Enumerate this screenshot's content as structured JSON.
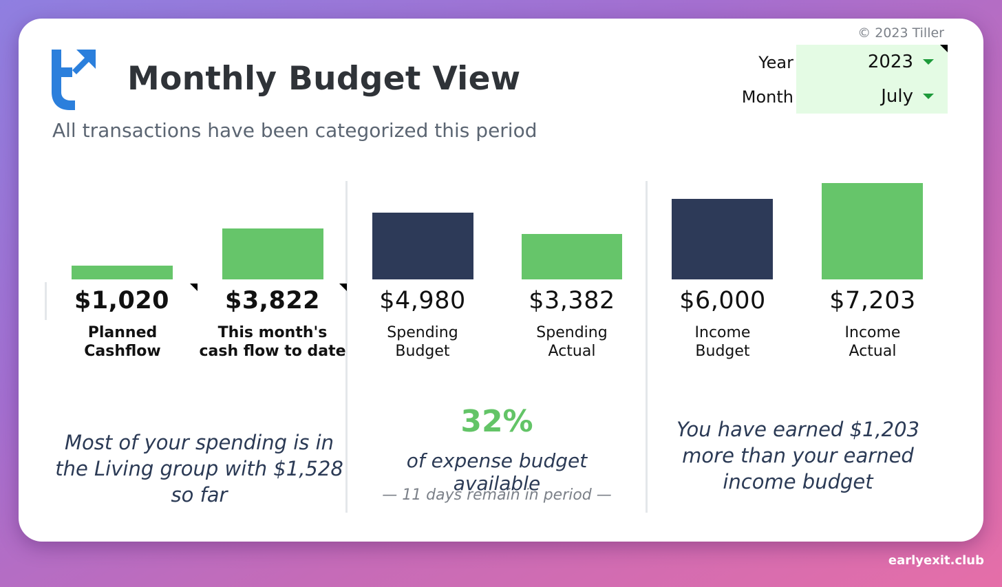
{
  "copyright": "© 2023 Tiller",
  "title": "Monthly Budget View",
  "subtitle": "All transactions have been categorized this period",
  "selectors": {
    "year": {
      "label": "Year",
      "value": "2023"
    },
    "month": {
      "label": "Month",
      "value": "July"
    }
  },
  "colors": {
    "green": "#66c56a",
    "navy": "#2d3a58",
    "selector_bg": "#e4fbe4",
    "accent_text": "#63c467"
  },
  "icons": {
    "logo": "tiller-logo",
    "dropdown": "triangle-down-icon",
    "note": "note-corner-icon"
  },
  "metrics": [
    {
      "value": "$1,020",
      "label": "Planned Cashflow",
      "color": "green",
      "amount": 1020
    },
    {
      "value": "$3,822",
      "label": "This month's cash flow to date",
      "color": "green",
      "amount": 3822
    },
    {
      "value": "$4,980",
      "label": "Spending Budget",
      "color": "navy",
      "amount": 4980
    },
    {
      "value": "$3,382",
      "label": "Spending Actual",
      "color": "green",
      "amount": 3382
    },
    {
      "value": "$6,000",
      "label": "Income Budget",
      "color": "navy",
      "amount": 6000
    },
    {
      "value": "$7,203",
      "label": "Income Actual",
      "color": "green",
      "amount": 7203
    }
  ],
  "insights": {
    "spending_group": "Most of your spending is in the Living group with $1,528 so far",
    "budget_pct": "32%",
    "budget_pct_text": "of expense budget available",
    "days_remaining": "— 11 days remain in period —",
    "income": "You have earned $1,203 more than your earned income budget"
  },
  "watermark": "earlyexit.club"
}
